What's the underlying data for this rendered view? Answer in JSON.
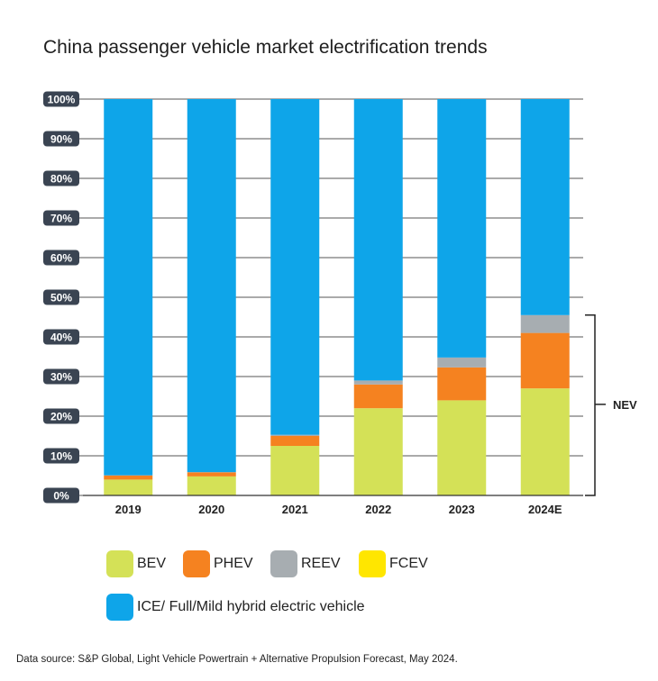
{
  "title": "China passenger vehicle market electrification trends",
  "source": "Data source: S&P Global, Light Vehicle Powertrain + Alternative Propulsion Forecast, May 2024.",
  "bracket_label": "NEV",
  "legend": [
    {
      "label": "BEV",
      "color": "#d4e157"
    },
    {
      "label": "PHEV",
      "color": "#f58220"
    },
    {
      "label": "REEV",
      "color": "#a7adb1"
    },
    {
      "label": "FCEV",
      "color": "#ffe600"
    },
    {
      "label": "ICE/ Full/Mild hybrid electric vehicle",
      "color": "#0ea5e9"
    }
  ],
  "chart_data": {
    "type": "bar",
    "stacked": true,
    "title": "China passenger vehicle market electrification trends",
    "categories": [
      "2019",
      "2020",
      "2021",
      "2022",
      "2023",
      "2024E"
    ],
    "y_ticks": [
      "0%",
      "10%",
      "20%",
      "30%",
      "40%",
      "50%",
      "60%",
      "70%",
      "80%",
      "90%",
      "100%"
    ],
    "ylim": [
      0,
      100
    ],
    "grid": true,
    "legend_position": "bottom",
    "series": [
      {
        "name": "BEV",
        "color": "#d4e157",
        "values": [
          4.0,
          4.8,
          12.5,
          22.0,
          24.0,
          27.0
        ]
      },
      {
        "name": "PHEV",
        "color": "#f58220",
        "values": [
          1.0,
          1.0,
          2.5,
          6.0,
          8.3,
          14.0
        ]
      },
      {
        "name": "REEV",
        "color": "#a7adb1",
        "values": [
          0.1,
          0.1,
          0.3,
          1.0,
          2.5,
          4.5
        ]
      },
      {
        "name": "FCEV",
        "color": "#ffe600",
        "values": [
          0,
          0,
          0,
          0,
          0,
          0
        ]
      },
      {
        "name": "ICE/ Full/Mild hybrid electric vehicle",
        "color": "#0ea5e9",
        "values": [
          94.9,
          94.1,
          84.7,
          71.0,
          65.2,
          54.5
        ]
      }
    ],
    "bracket": {
      "label": "NEV",
      "from": 0,
      "to": 45.5
    }
  }
}
